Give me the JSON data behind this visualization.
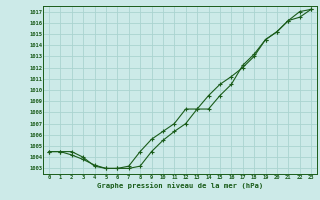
{
  "title": "Graphe pression niveau de la mer (hPa)",
  "bg_color": "#cceae8",
  "grid_color": "#aad4d0",
  "line_color": "#1a5c1a",
  "x_ticks": [
    0,
    1,
    2,
    3,
    4,
    5,
    6,
    7,
    8,
    9,
    10,
    11,
    12,
    13,
    14,
    15,
    16,
    17,
    18,
    19,
    20,
    21,
    22,
    23
  ],
  "y_ticks": [
    1003,
    1004,
    1005,
    1006,
    1007,
    1008,
    1009,
    1010,
    1011,
    1012,
    1013,
    1014,
    1015,
    1016,
    1017
  ],
  "ylim": [
    1002.5,
    1017.5
  ],
  "xlim": [
    -0.5,
    23.5
  ],
  "series1": [
    1004.5,
    1004.5,
    1004.5,
    1004.0,
    1003.2,
    1003.0,
    1003.0,
    1003.2,
    1004.5,
    1005.6,
    1006.3,
    1007.0,
    1008.3,
    1008.3,
    1009.5,
    1010.5,
    1011.2,
    1012.0,
    1013.0,
    1014.5,
    1015.2,
    1016.2,
    1017.0,
    1017.2
  ],
  "series2": [
    1004.5,
    1004.5,
    1004.2,
    1003.8,
    1003.3,
    1003.0,
    1003.0,
    1003.0,
    1003.2,
    1004.5,
    1005.5,
    1006.3,
    1007.0,
    1008.3,
    1008.3,
    1009.5,
    1010.5,
    1012.2,
    1013.2,
    1014.5,
    1015.2,
    1016.2,
    1016.5,
    1017.2
  ]
}
